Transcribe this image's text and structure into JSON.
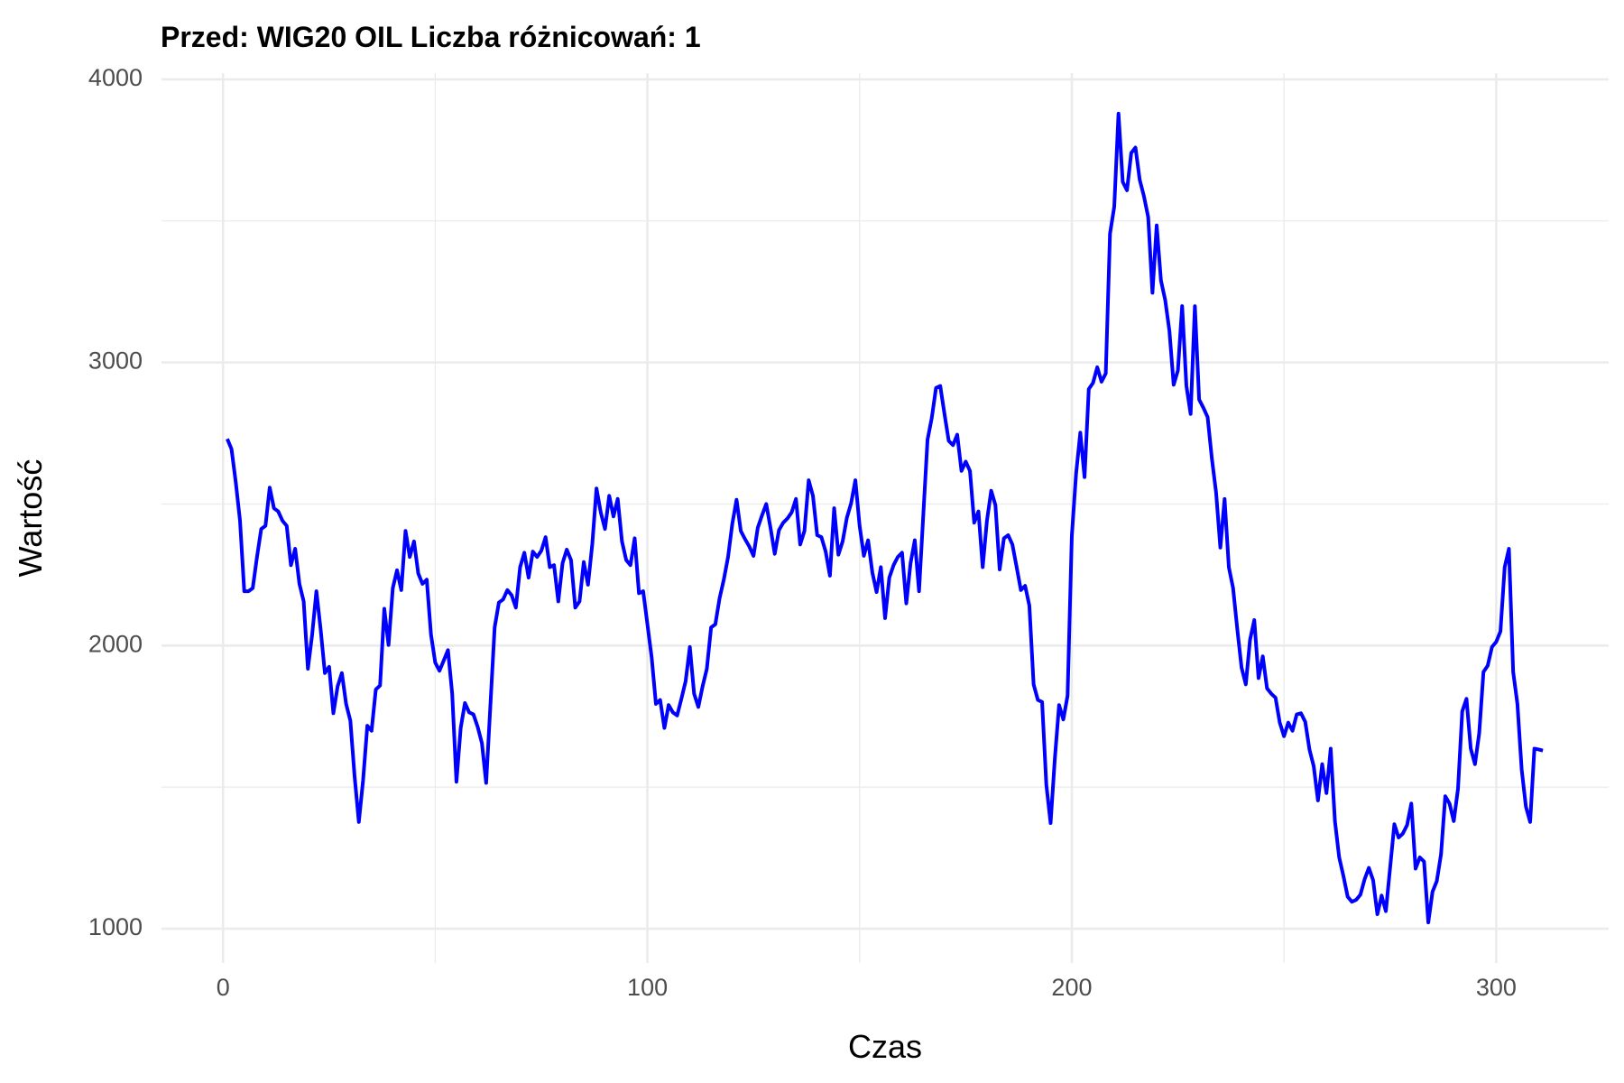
{
  "chart_data": {
    "type": "line",
    "title": "Przed: WIG20 OIL Liczba różnicowań:  1",
    "x_label": "Czas",
    "y_label": "Wartość",
    "color": "#0000ff",
    "grid": true,
    "xlim": [
      -14.5,
      326.5
    ],
    "ylim": [
      879,
      4022
    ],
    "xticks": [
      0,
      100,
      200,
      300
    ],
    "yticks": [
      1000,
      2000,
      3000,
      4000
    ],
    "x_minor_grid": [
      50,
      150,
      250
    ],
    "y_minor_grid": [
      1500,
      2500,
      3500
    ],
    "x": [
      1,
      2,
      3,
      4,
      5,
      6,
      7,
      8,
      9,
      10,
      11,
      12,
      13,
      14,
      15,
      16,
      17,
      18,
      19,
      20,
      21,
      22,
      23,
      24,
      25,
      26,
      27,
      28,
      29,
      30,
      31,
      32,
      33,
      34,
      35,
      36,
      37,
      38,
      39,
      40,
      41,
      42,
      43,
      44,
      45,
      46,
      47,
      48,
      49,
      50,
      51,
      52,
      53,
      54,
      55,
      56,
      57,
      58,
      59,
      60,
      61,
      62,
      63,
      64,
      65,
      66,
      67,
      68,
      69,
      70,
      71,
      72,
      73,
      74,
      75,
      76,
      77,
      78,
      79,
      80,
      81,
      82,
      83,
      84,
      85,
      86,
      87,
      88,
      89,
      90,
      91,
      92,
      93,
      94,
      95,
      96,
      97,
      98,
      99,
      100,
      101,
      102,
      103,
      104,
      105,
      106,
      107,
      108,
      109,
      110,
      111,
      112,
      113,
      114,
      115,
      116,
      117,
      118,
      119,
      120,
      121,
      122,
      123,
      124,
      125,
      126,
      127,
      128,
      129,
      130,
      131,
      132,
      133,
      134,
      135,
      136,
      137,
      138,
      139,
      140,
      141,
      142,
      143,
      144,
      145,
      146,
      147,
      148,
      149,
      150,
      151,
      152,
      153,
      154,
      155,
      156,
      157,
      158,
      159,
      160,
      161,
      162,
      163,
      164,
      165,
      166,
      167,
      168,
      169,
      170,
      171,
      172,
      173,
      174,
      175,
      176,
      177,
      178,
      179,
      180,
      181,
      182,
      183,
      184,
      185,
      186,
      187,
      188,
      189,
      190,
      191,
      192,
      193,
      194,
      195,
      196,
      197,
      198,
      199,
      200,
      201,
      202,
      203,
      204,
      205,
      206,
      207,
      208,
      209,
      210,
      211,
      212,
      213,
      214,
      215,
      216,
      217,
      218,
      219,
      220,
      221,
      222,
      223,
      224,
      225,
      226,
      227,
      228,
      229,
      230,
      231,
      232,
      233,
      234,
      235,
      236,
      237,
      238,
      239,
      240,
      241,
      242,
      243,
      244,
      245,
      246,
      247,
      248,
      249,
      250,
      251,
      252,
      253,
      254,
      255,
      256,
      257,
      258,
      259,
      260,
      261,
      262,
      263,
      264,
      265,
      266,
      267,
      268,
      269,
      270,
      271,
      272,
      273,
      274,
      275,
      276,
      277,
      278,
      279,
      280,
      281,
      282,
      283,
      284,
      285,
      286,
      287,
      288,
      289,
      290,
      291,
      292,
      293,
      294,
      295,
      296,
      297,
      298,
      299,
      300,
      301,
      302,
      303,
      304,
      305,
      306,
      307,
      308,
      309,
      310,
      311
    ],
    "values": [
      2730,
      2694,
      2577,
      2441,
      2192,
      2192,
      2203,
      2313,
      2412,
      2423,
      2558,
      2485,
      2474,
      2441,
      2423,
      2284,
      2342,
      2218,
      2156,
      1918,
      2039,
      2192,
      2057,
      1903,
      1925,
      1761,
      1856,
      1903,
      1794,
      1735,
      1538,
      1377,
      1524,
      1717,
      1699,
      1845,
      1859,
      2130,
      2002,
      2203,
      2266,
      2196,
      2405,
      2313,
      2368,
      2255,
      2218,
      2233,
      2039,
      1940,
      1911,
      1947,
      1984,
      1830,
      1519,
      1709,
      1797,
      1764,
      1757,
      1713,
      1655,
      1515,
      1790,
      2064,
      2152,
      2163,
      2196,
      2178,
      2134,
      2277,
      2328,
      2240,
      2332,
      2313,
      2335,
      2383,
      2277,
      2284,
      2156,
      2291,
      2339,
      2302,
      2134,
      2156,
      2295,
      2215,
      2357,
      2555,
      2471,
      2412,
      2529,
      2456,
      2518,
      2368,
      2302,
      2284,
      2379,
      2185,
      2192,
      2075,
      1958,
      1794,
      1808,
      1709,
      1790,
      1764,
      1753,
      1812,
      1874,
      1995,
      1830,
      1783,
      1856,
      1918,
      2064,
      2075,
      2167,
      2233,
      2313,
      2430,
      2515,
      2405,
      2376,
      2350,
      2317,
      2416,
      2460,
      2500,
      2416,
      2324,
      2408,
      2434,
      2449,
      2471,
      2518,
      2357,
      2405,
      2584,
      2529,
      2390,
      2383,
      2332,
      2247,
      2485,
      2321,
      2368,
      2452,
      2503,
      2584,
      2423,
      2317,
      2372,
      2258,
      2189,
      2277,
      2097,
      2240,
      2284,
      2313,
      2328,
      2149,
      2291,
      2372,
      2192,
      2460,
      2727,
      2804,
      2910,
      2917,
      2818,
      2723,
      2708,
      2745,
      2617,
      2650,
      2617,
      2434,
      2474,
      2277,
      2441,
      2547,
      2496,
      2269,
      2379,
      2390,
      2357,
      2277,
      2196,
      2211,
      2141,
      1863,
      1808,
      1801,
      1508,
      1373,
      1600,
      1790,
      1739,
      1823,
      2386,
      2606,
      2752,
      2595,
      2906,
      2928,
      2983,
      2932,
      2961,
      3455,
      3550,
      3879,
      3638,
      3608,
      3740,
      3759,
      3645,
      3587,
      3513,
      3246,
      3484,
      3290,
      3221,
      3111,
      2921,
      2972,
      3199,
      2917,
      2818,
      3199,
      2869,
      2840,
      2807,
      2661,
      2540,
      2346,
      2518,
      2277,
      2203,
      2057,
      1922,
      1863,
      2021,
      2090,
      1885,
      1962,
      1849,
      1830,
      1816,
      1728,
      1680,
      1728,
      1699,
      1757,
      1761,
      1731,
      1633,
      1574,
      1453,
      1581,
      1479,
      1636,
      1380,
      1252,
      1186,
      1113,
      1095,
      1102,
      1120,
      1175,
      1215,
      1171,
      1051,
      1117,
      1062,
      1215,
      1369,
      1322,
      1336,
      1366,
      1442,
      1212,
      1252,
      1237,
      1022,
      1131,
      1168,
      1263,
      1468,
      1442,
      1380,
      1494,
      1768,
      1812,
      1636,
      1581,
      1691,
      1907,
      1929,
      1995,
      2013,
      2050,
      2277,
      2342,
      1907,
      1794,
      1563,
      1431,
      1377,
      1636,
      1633,
      1629
    ]
  }
}
